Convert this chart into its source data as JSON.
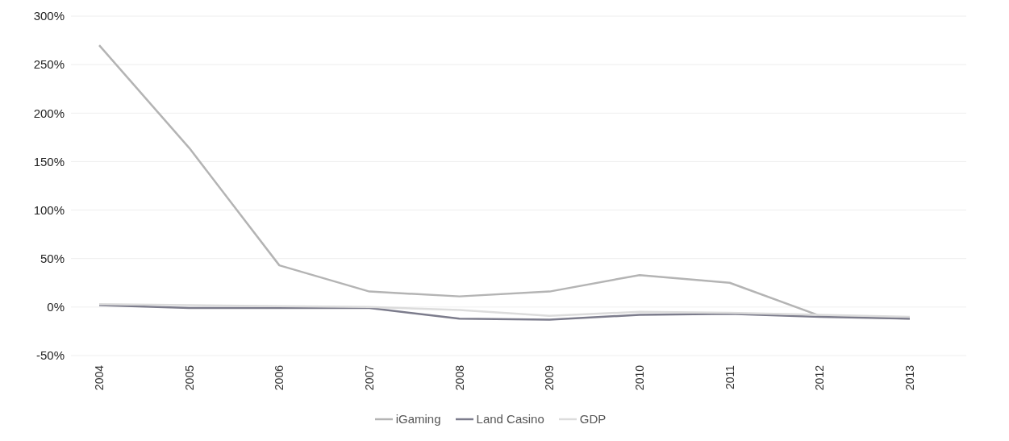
{
  "chart_data": {
    "type": "line",
    "categories": [
      "2004",
      "2005",
      "2006",
      "2007",
      "2008",
      "2009",
      "2010",
      "2011",
      "2012",
      "2013"
    ],
    "series": [
      {
        "name": "iGaming",
        "color": "#b4b4b4",
        "values": [
          270,
          164,
          43,
          16,
          11,
          16,
          33,
          25,
          -9,
          -12
        ]
      },
      {
        "name": "Land Casino",
        "color": "#7c7c8c",
        "values": [
          2,
          -1,
          -1,
          -1,
          -12,
          -13,
          -8,
          -7,
          -10,
          -12
        ]
      },
      {
        "name": "GDP",
        "color": "#dcdcdc",
        "values": [
          3,
          2,
          1,
          0,
          -3,
          -9,
          -5,
          -6,
          -8,
          -10
        ]
      }
    ],
    "ylim": [
      -50,
      300
    ],
    "yticks": [
      {
        "value": -50,
        "label": "-50%"
      },
      {
        "value": 0,
        "label": "0%"
      },
      {
        "value": 50,
        "label": "50%"
      },
      {
        "value": 100,
        "label": "100%"
      },
      {
        "value": 150,
        "label": "150%"
      },
      {
        "value": 200,
        "label": "200%"
      },
      {
        "value": 250,
        "label": "250%"
      },
      {
        "value": 300,
        "label": "300%"
      }
    ],
    "grid": "y",
    "legend": "bottom",
    "marker": "none",
    "line_style": "solid"
  }
}
